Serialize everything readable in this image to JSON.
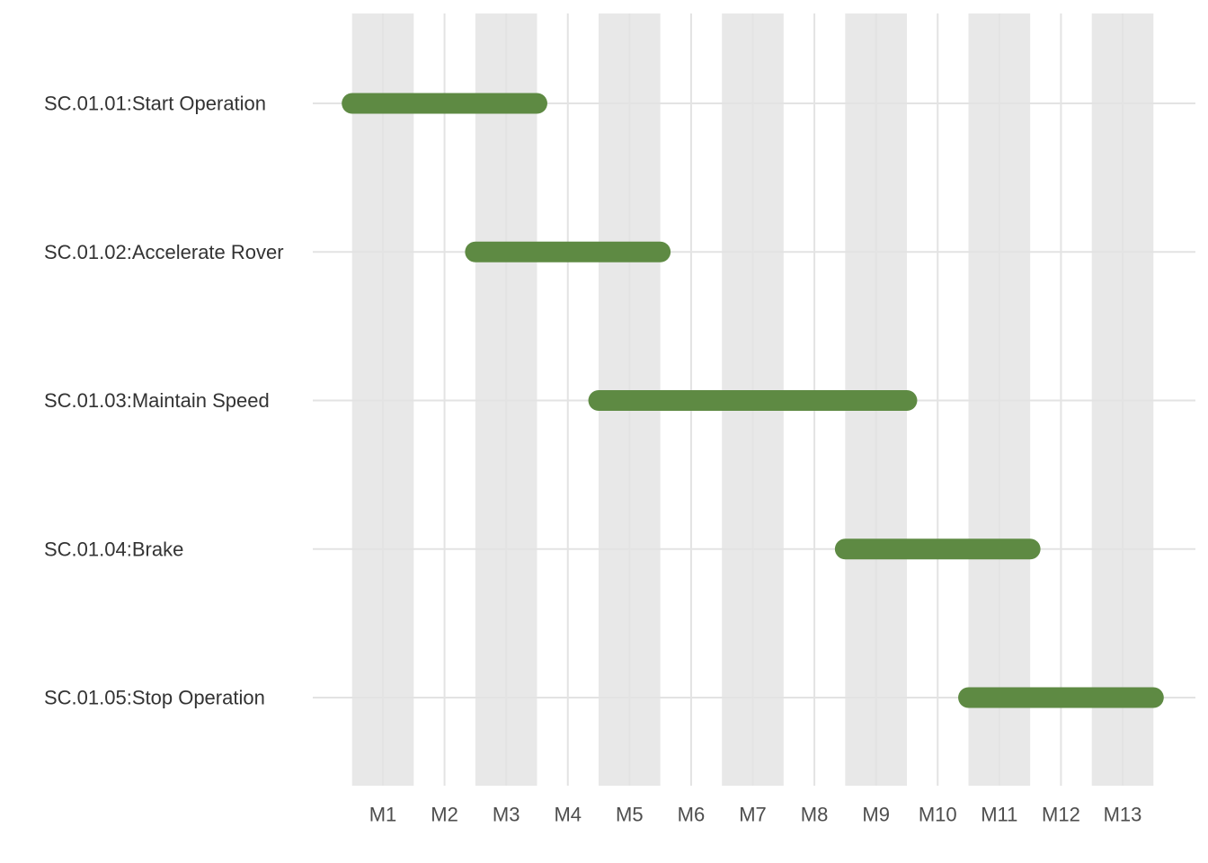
{
  "chart_data": {
    "type": "gantt",
    "title": "",
    "xlabel": "",
    "ylabel": "",
    "x_categories": [
      "M1",
      "M2",
      "M3",
      "M4",
      "M5",
      "M6",
      "M7",
      "M8",
      "M9",
      "M10",
      "M11",
      "M12",
      "M13"
    ],
    "shaded_columns": [
      "M1",
      "M3",
      "M5",
      "M7",
      "M9",
      "M11",
      "M13"
    ],
    "tasks": [
      {
        "name": "SC.01.01:Start Operation",
        "start": 0.5,
        "end": 3.5
      },
      {
        "name": "SC.01.02:Accelerate Rover",
        "start": 2.5,
        "end": 5.5
      },
      {
        "name": "SC.01.03:Maintain Speed",
        "start": 4.5,
        "end": 9.5
      },
      {
        "name": "SC.01.04:Brake",
        "start": 8.5,
        "end": 11.5
      },
      {
        "name": "SC.01.05:Stop Operation",
        "start": 10.5,
        "end": 13.5
      }
    ],
    "grid": true,
    "colors": {
      "bar": "#5e8a43",
      "shade": "#e8e8e8",
      "grid": "#e3e3e3",
      "tick_text": "#4d4d4d",
      "task_text": "#333333"
    }
  }
}
